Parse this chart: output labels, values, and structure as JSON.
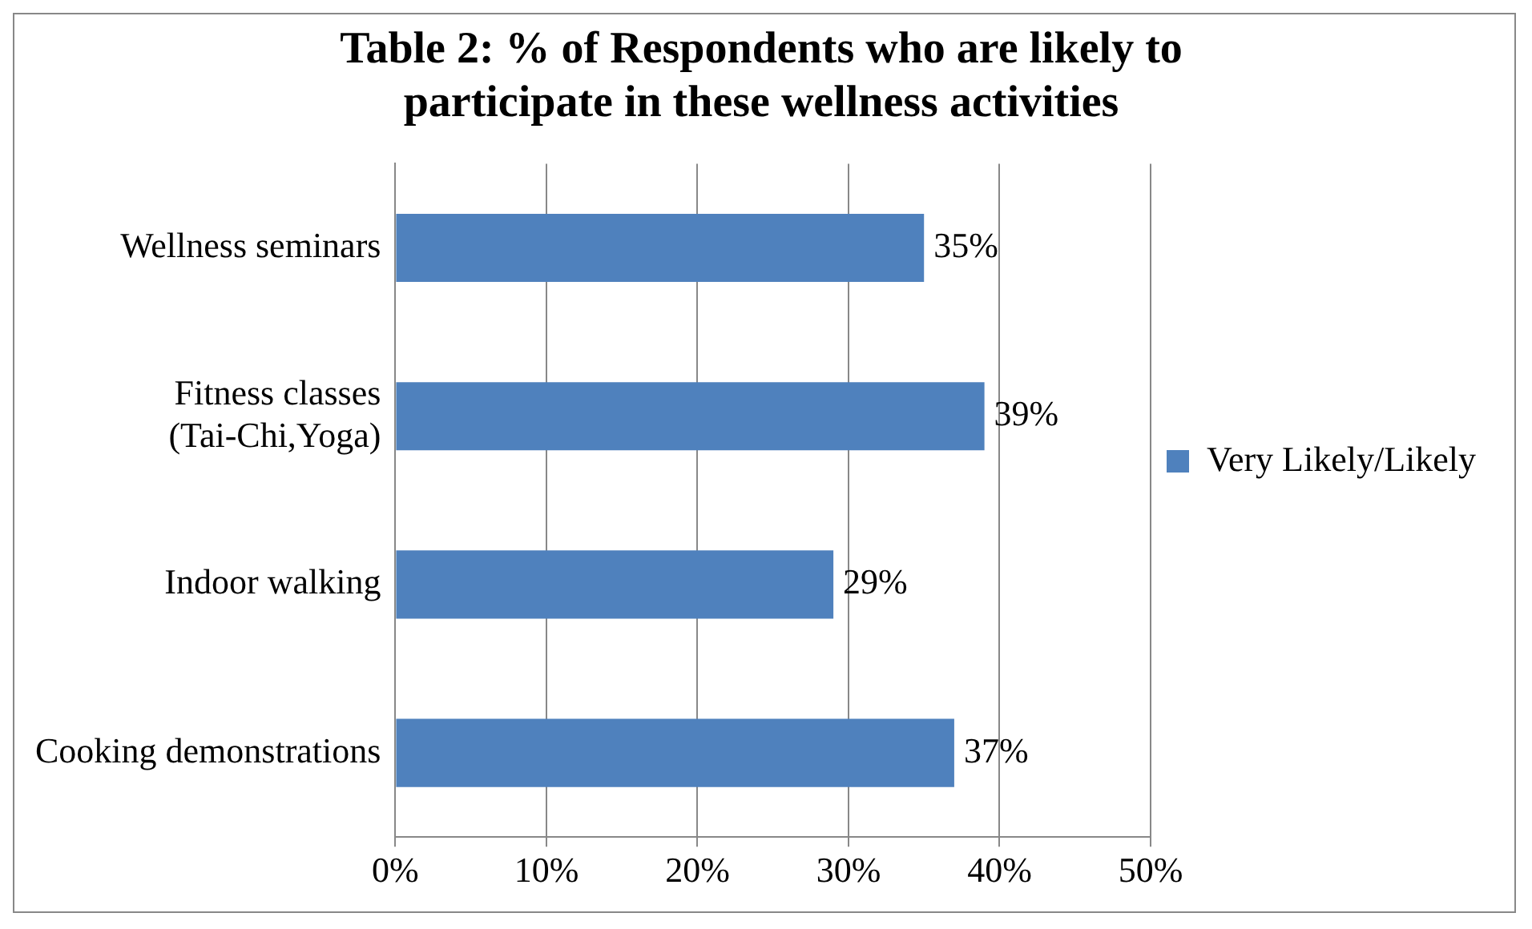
{
  "chart_data": {
    "type": "bar",
    "orientation": "horizontal",
    "title": "Table 2: % of Respondents who are likely to participate in these wellness activities",
    "categories": [
      "Wellness seminars",
      "Fitness classes (Tai-Chi,Yoga)",
      "Indoor walking",
      "Cooking demonstrations"
    ],
    "series": [
      {
        "name": "Very Likely/Likely",
        "color": "#4f81bd",
        "values": [
          35,
          39,
          29,
          37
        ],
        "value_labels": [
          "35%",
          "39%",
          "29%",
          "37%"
        ]
      }
    ],
    "xlim": [
      0,
      50
    ],
    "xticks": [
      {
        "value": 0,
        "label": "0%"
      },
      {
        "value": 10,
        "label": "10%"
      },
      {
        "value": 20,
        "label": "20%"
      },
      {
        "value": 30,
        "label": "30%"
      },
      {
        "value": 40,
        "label": "40%"
      },
      {
        "value": 50,
        "label": "50%"
      }
    ],
    "grid": "x",
    "legend": "right"
  }
}
